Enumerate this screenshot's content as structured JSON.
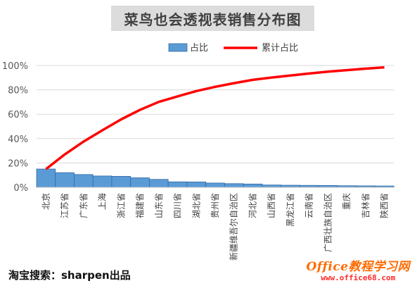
{
  "chart_data": {
    "type": "bar",
    "title": "菜鸟也会透视表销售分布图",
    "categories": [
      "北京",
      "江苏省",
      "广东省",
      "上海",
      "浙江省",
      "福建省",
      "山东省",
      "四川省",
      "湖北省",
      "贵州省",
      "新疆维吾尔自治区",
      "河北省",
      "山西省",
      "黑龙江省",
      "云南省",
      "广西壮族自治区",
      "重庆",
      "吉林省",
      "陕西省"
    ],
    "series": [
      {
        "name": "占比",
        "type": "bar",
        "color": "#5b9bd5",
        "values": [
          0.15,
          0.12,
          0.105,
          0.093,
          0.09,
          0.078,
          0.065,
          0.045,
          0.044,
          0.035,
          0.03,
          0.027,
          0.019,
          0.017,
          0.016,
          0.015,
          0.013,
          0.012,
          0.011
        ]
      },
      {
        "name": "累计占比",
        "type": "line",
        "color": "#ff0000",
        "values": [
          0.15,
          0.27,
          0.375,
          0.468,
          0.558,
          0.636,
          0.701,
          0.746,
          0.79,
          0.825,
          0.855,
          0.882,
          0.901,
          0.918,
          0.934,
          0.949,
          0.962,
          0.974,
          0.985
        ]
      }
    ],
    "ylim": [
      0,
      1
    ],
    "yticks": [
      "0%",
      "20%",
      "40%",
      "60%",
      "80%",
      "100%"
    ],
    "grid": true,
    "legend": "top"
  },
  "footer": {
    "left_text": "淘宝搜索：sharpen出品",
    "watermark_main": "Office教程学习网",
    "watermark_url": "www.office68.com"
  }
}
